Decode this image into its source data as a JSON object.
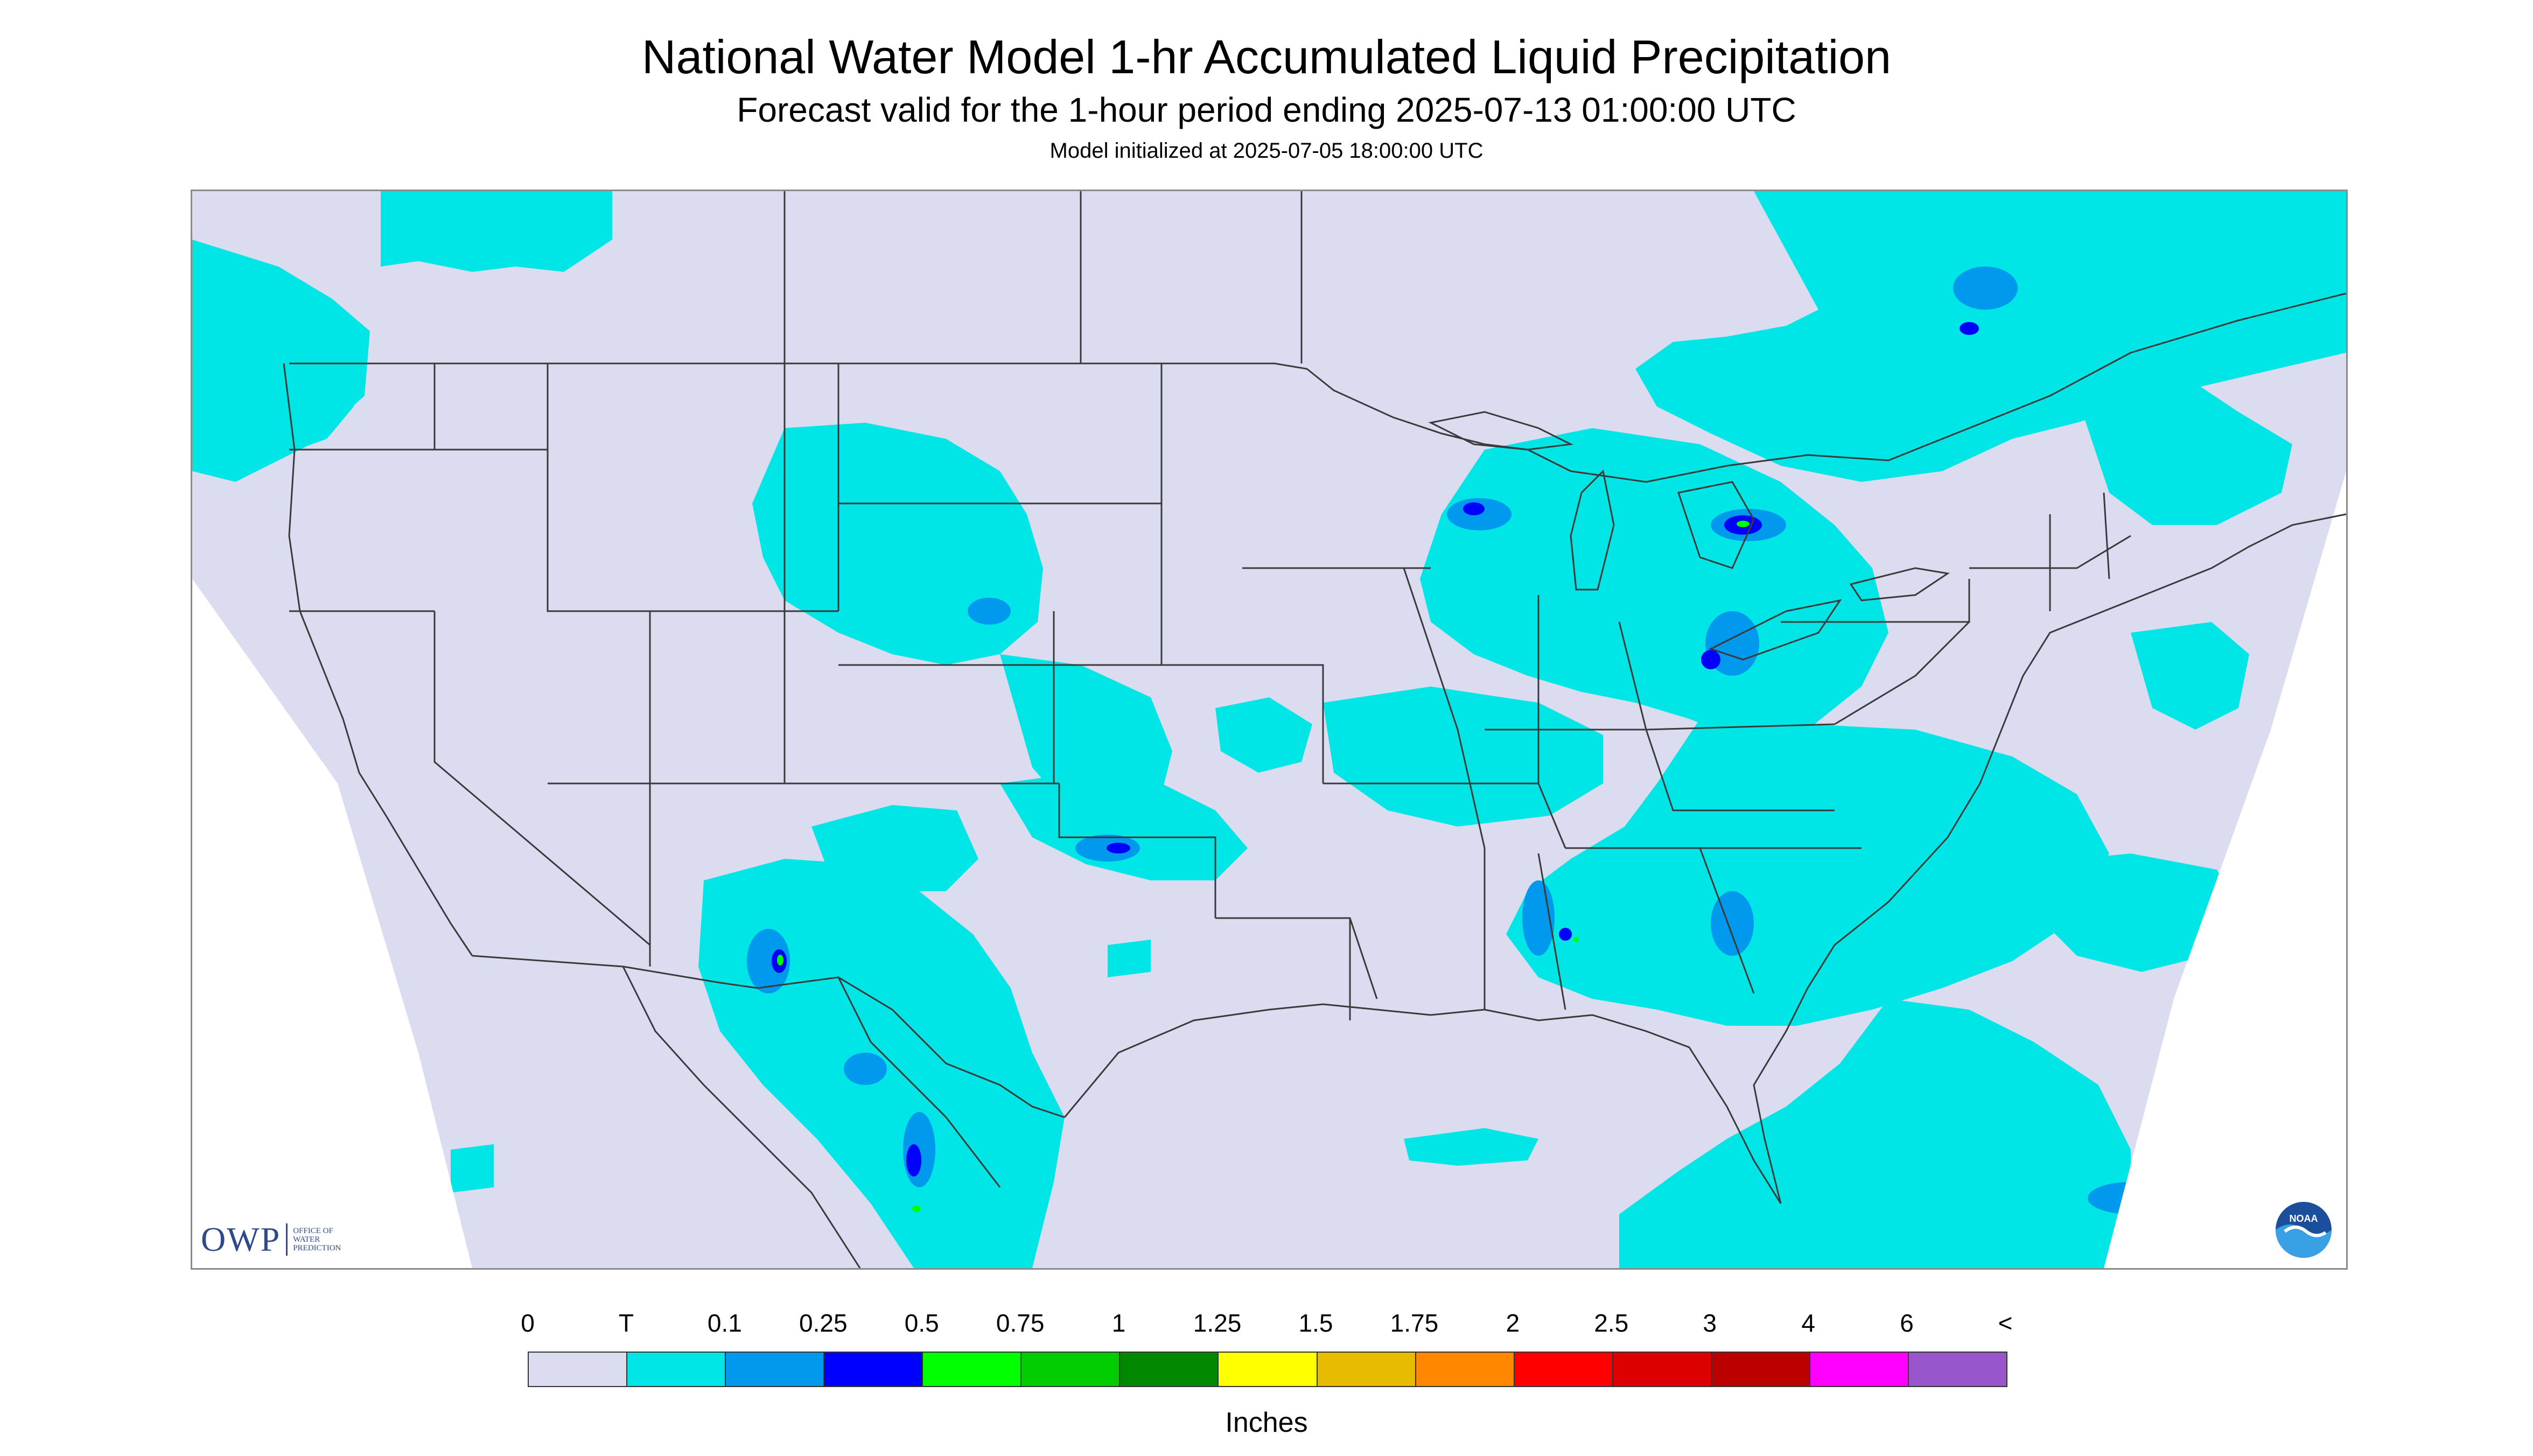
{
  "title": "National Water Model 1-hr Accumulated Liquid Precipitation",
  "subtitle": "Forecast valid for the 1-hour period ending 2025-07-13 01:00:00 UTC",
  "init_line": "Model initialized at 2025-07-05 18:00:00 UTC",
  "logos": {
    "owp_main": "OWP",
    "owp_sub": [
      "OFFICE OF",
      "WATER",
      "PREDICTION"
    ],
    "noaa_text": "NOAA"
  },
  "legend": {
    "labels": [
      "0",
      "T",
      "0.1",
      "0.25",
      "0.5",
      "0.75",
      "1",
      "1.25",
      "1.5",
      "1.75",
      "2",
      "2.5",
      "3",
      "4",
      "6",
      "<"
    ],
    "colors": [
      "#dcdcf0",
      "#00e5e5",
      "#0099ee",
      "#0000ff",
      "#00ff00",
      "#00cc00",
      "#008800",
      "#ffff00",
      "#e6bb00",
      "#ff8800",
      "#ff0000",
      "#dd0000",
      "#bb0000",
      "#ff00ff",
      "#9955cc"
    ],
    "units": "Inches"
  },
  "colors": {
    "no_data_bg": "#dcdcf0",
    "trace": "#00e5e5",
    "light": "#0099ee",
    "moderate": "#0000ff",
    "heavy": "#00ff00",
    "boundary": "#3a3a3a"
  }
}
